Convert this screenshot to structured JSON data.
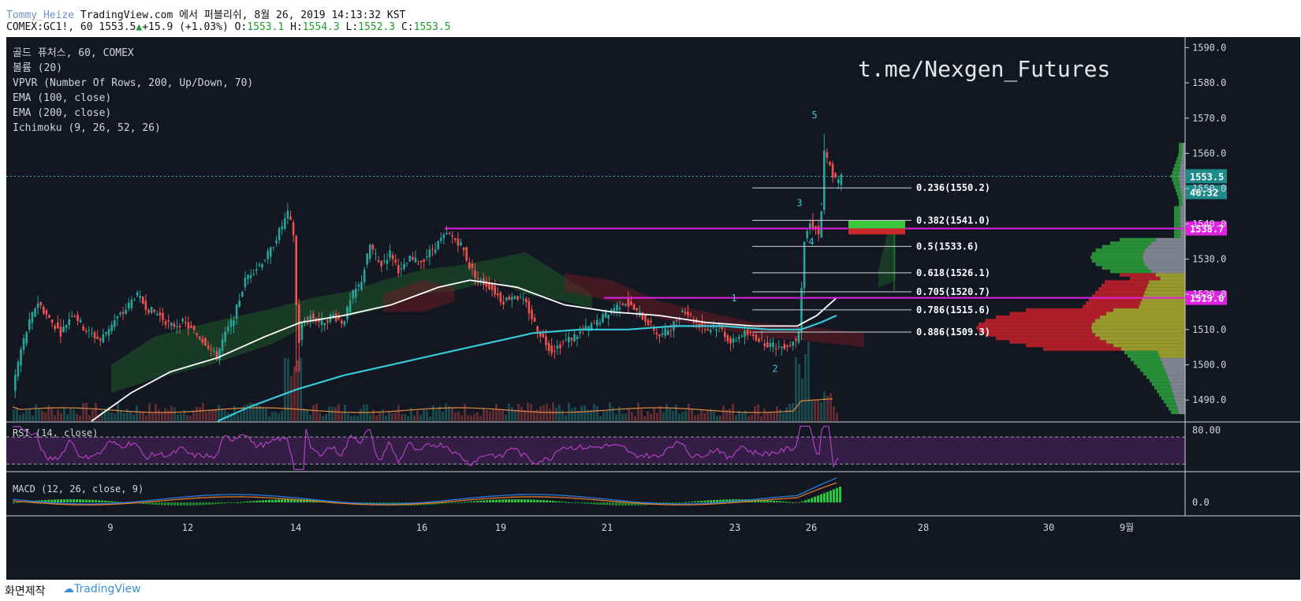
{
  "header": {
    "author": "Tommy_Heize",
    "published": "TradingView.com 에서 퍼블리쉬, 8월 26, 2019 14:13:32 KST",
    "symbol": "COMEX:GC1!, 60",
    "last": "1553.5",
    "change": "+15.9 (+1.03%)",
    "o_label": "O:",
    "o": "1553.1",
    "h_label": "H:",
    "h": "1554.3",
    "l_label": "L:",
    "l": "1552.3",
    "c_label": "C:",
    "c": "1553.5"
  },
  "legend": [
    "골드 퓨처스, 60, COMEX",
    "볼륨 (20)",
    "VPVR (Number Of Rows, 200, Up/Down, 70)",
    "EMA (100, close)",
    "EMA (200, close)",
    "Ichimoku (9, 26, 52, 26)"
  ],
  "watermark": "t.me/Nexgen_Futures",
  "footer": {
    "made": "화면제작",
    "brand": "TradingView"
  },
  "colors": {
    "background": "#131722",
    "up": "#26a69a",
    "down": "#ef5350",
    "ema100": "#ffffff",
    "ema200": "#38c8d8",
    "magenta": "#e020e0",
    "rsi": "#b040c0"
  },
  "chart_data": {
    "type": "candlestick",
    "price_axis": {
      "ticks": [
        "1590.0",
        "1580.0",
        "1570.0",
        "1560.0",
        "1550.0",
        "1540.0",
        "1530.0",
        "1520.0",
        "1510.0",
        "1500.0",
        "1490.0"
      ],
      "ylim": [
        1484,
        1593
      ]
    },
    "x_ticks": [
      "9",
      "12",
      "14",
      "16",
      "19",
      "21",
      "23",
      "26",
      "28",
      "30",
      "9월"
    ],
    "price_labels": {
      "current": "1553.5",
      "countdown": "46:32",
      "level_high": "1538.7",
      "level_low": "1519.0"
    },
    "levels": [
      1538.7,
      1519.0
    ],
    "fib_levels": [
      {
        "ratio": "0.236",
        "price": "1550.2",
        "label": "0.236(1550.2)"
      },
      {
        "ratio": "0.382",
        "price": "1541.0",
        "label": "0.382(1541.0)"
      },
      {
        "ratio": "0.5",
        "price": "1533.6",
        "label": "0.5(1533.6)"
      },
      {
        "ratio": "0.618",
        "price": "1526.1",
        "label": "0.618(1526.1)"
      },
      {
        "ratio": "0.705",
        "price": "1520.7",
        "label": "0.705(1520.7)"
      },
      {
        "ratio": "0.786",
        "price": "1515.6",
        "label": "0.786(1515.6)"
      },
      {
        "ratio": "0.886",
        "price": "1509.3",
        "label": "0.886(1509.3)"
      }
    ],
    "wave_labels": [
      "1",
      "2",
      "3",
      "4",
      "5"
    ],
    "close_path": [
      [
        0,
        1495
      ],
      [
        10,
        1505
      ],
      [
        20,
        1512
      ],
      [
        30,
        1518
      ],
      [
        45,
        1513
      ],
      [
        60,
        1509
      ],
      [
        75,
        1515
      ],
      [
        90,
        1510
      ],
      [
        110,
        1507
      ],
      [
        125,
        1512
      ],
      [
        140,
        1515
      ],
      [
        155,
        1520
      ],
      [
        170,
        1516
      ],
      [
        185,
        1514
      ],
      [
        200,
        1511
      ],
      [
        215,
        1512
      ],
      [
        230,
        1509
      ],
      [
        245,
        1506
      ],
      [
        257,
        1502
      ],
      [
        265,
        1507
      ],
      [
        280,
        1514
      ],
      [
        295,
        1525
      ],
      [
        310,
        1528
      ],
      [
        325,
        1532
      ],
      [
        335,
        1537
      ],
      [
        348,
        1543
      ],
      [
        356,
        1536
      ],
      [
        360,
        1504
      ],
      [
        366,
        1512
      ],
      [
        375,
        1514
      ],
      [
        390,
        1512
      ],
      [
        405,
        1514
      ],
      [
        418,
        1512
      ],
      [
        430,
        1520
      ],
      [
        440,
        1523
      ],
      [
        452,
        1534
      ],
      [
        465,
        1528
      ],
      [
        478,
        1532
      ],
      [
        490,
        1526
      ],
      [
        502,
        1530
      ],
      [
        515,
        1529
      ],
      [
        528,
        1532
      ],
      [
        540,
        1535
      ],
      [
        550,
        1537
      ],
      [
        558,
        1536
      ],
      [
        568,
        1534
      ],
      [
        578,
        1528
      ],
      [
        590,
        1524
      ],
      [
        605,
        1522
      ],
      [
        620,
        1518
      ],
      [
        635,
        1520
      ],
      [
        650,
        1517
      ],
      [
        660,
        1512
      ],
      [
        670,
        1508
      ],
      [
        682,
        1504
      ],
      [
        695,
        1506
      ],
      [
        710,
        1508
      ],
      [
        725,
        1510
      ],
      [
        740,
        1512
      ],
      [
        750,
        1514
      ],
      [
        760,
        1516
      ],
      [
        775,
        1518
      ],
      [
        790,
        1515
      ],
      [
        805,
        1512
      ],
      [
        820,
        1508
      ],
      [
        835,
        1511
      ],
      [
        850,
        1516
      ],
      [
        865,
        1512
      ],
      [
        880,
        1510
      ],
      [
        895,
        1511
      ],
      [
        910,
        1506
      ],
      [
        925,
        1509
      ],
      [
        940,
        1508
      ],
      [
        955,
        1506
      ],
      [
        970,
        1505
      ],
      [
        985,
        1506
      ],
      [
        995,
        1508
      ],
      [
        1003,
        1536
      ],
      [
        1010,
        1540
      ],
      [
        1018,
        1539
      ],
      [
        1022,
        1536
      ],
      [
        1024,
        1542
      ],
      [
        1028,
        1560
      ],
      [
        1034,
        1557
      ],
      [
        1040,
        1553
      ],
      [
        1046,
        1552
      ],
      [
        1050,
        1553.5
      ]
    ],
    "ema100_path": [
      [
        100,
        1484
      ],
      [
        150,
        1492
      ],
      [
        200,
        1498
      ],
      [
        260,
        1502
      ],
      [
        320,
        1508
      ],
      [
        365,
        1512
      ],
      [
        420,
        1514
      ],
      [
        480,
        1517
      ],
      [
        540,
        1522
      ],
      [
        580,
        1524
      ],
      [
        640,
        1522
      ],
      [
        700,
        1517
      ],
      [
        760,
        1515
      ],
      [
        820,
        1514
      ],
      [
        880,
        1512
      ],
      [
        940,
        1511
      ],
      [
        995,
        1511
      ],
      [
        1020,
        1514
      ],
      [
        1045,
        1519
      ]
    ],
    "ema200_path": [
      [
        260,
        1484
      ],
      [
        300,
        1488
      ],
      [
        360,
        1493
      ],
      [
        420,
        1497
      ],
      [
        480,
        1500
      ],
      [
        540,
        1503
      ],
      [
        600,
        1506
      ],
      [
        660,
        1509
      ],
      [
        720,
        1510
      ],
      [
        780,
        1510
      ],
      [
        840,
        1511
      ],
      [
        900,
        1511
      ],
      [
        960,
        1510
      ],
      [
        1000,
        1510
      ],
      [
        1025,
        1512
      ],
      [
        1045,
        1514
      ]
    ],
    "volume_axis": "",
    "rsi": {
      "label": "RSI (14, close)",
      "ticks": [
        "80.00"
      ],
      "upper": 70,
      "lower": 30
    },
    "macd": {
      "label": "MACD (12, 26, close, 9)",
      "ticks": [
        "0.0"
      ]
    }
  }
}
